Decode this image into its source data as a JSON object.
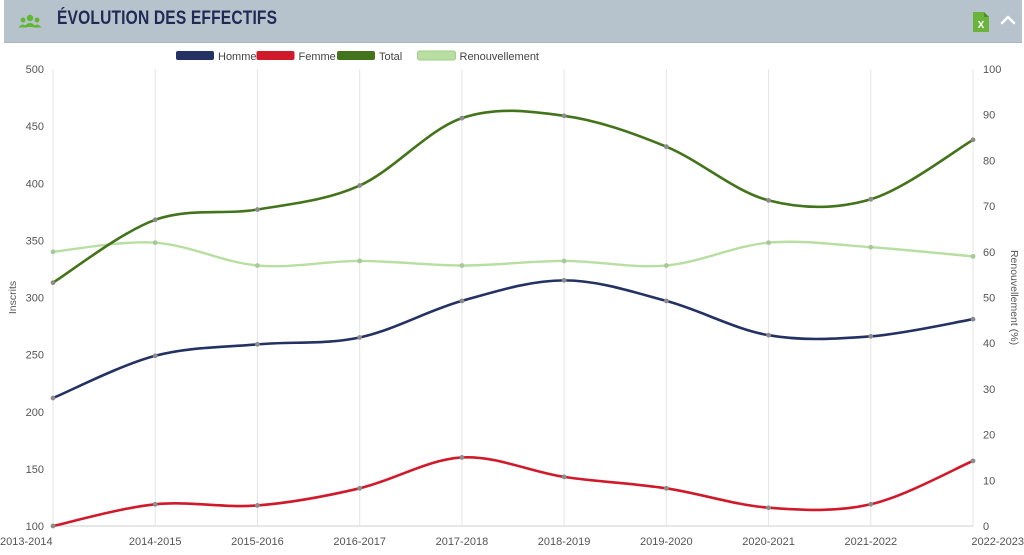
{
  "header": {
    "title": "ÉVOLUTION DES EFFECTIFS",
    "icon": "users-icon",
    "export_icon": "excel-icon",
    "export_icon_letter": "X",
    "collapse_icon": "chevron-up-icon",
    "background_color": "#b6c2cc",
    "title_color": "#1f2a55"
  },
  "chart_data": {
    "type": "line",
    "categories": [
      "2013-2014",
      "2014-2015",
      "2015-2016",
      "2016-2017",
      "2017-2018",
      "2018-2019",
      "2019-2020",
      "2020-2021",
      "2021-2022",
      "2022-2023"
    ],
    "series": [
      {
        "name": "Homme",
        "axis": "left",
        "color": "#243263",
        "values": [
          212,
          249,
          259,
          265,
          297,
          315,
          297,
          267,
          266,
          281
        ]
      },
      {
        "name": "Femme",
        "axis": "left",
        "color": "#d0192a",
        "values": [
          100,
          119,
          118,
          133,
          160,
          143,
          133,
          116,
          119,
          157
        ]
      },
      {
        "name": "Total",
        "axis": "left",
        "color": "#43741b",
        "values": [
          313,
          368,
          377,
          398,
          457,
          459,
          432,
          385,
          386,
          438
        ]
      },
      {
        "name": "Renouvellement",
        "axis": "right",
        "color": "#b8dea2",
        "values": [
          60,
          62,
          57,
          58,
          57,
          58,
          57,
          62,
          61,
          59
        ]
      }
    ],
    "y_left": {
      "label": "Inscrits",
      "min": 100,
      "max": 500,
      "ticks": [
        100,
        150,
        200,
        250,
        300,
        350,
        400,
        450,
        500
      ]
    },
    "y_right": {
      "label": "Renouvellement (%)",
      "min": 0,
      "max": 100,
      "ticks": [
        0,
        10,
        20,
        30,
        40,
        50,
        60,
        70,
        80,
        90,
        100
      ]
    },
    "grid": "vertical",
    "legend_position": "top"
  }
}
